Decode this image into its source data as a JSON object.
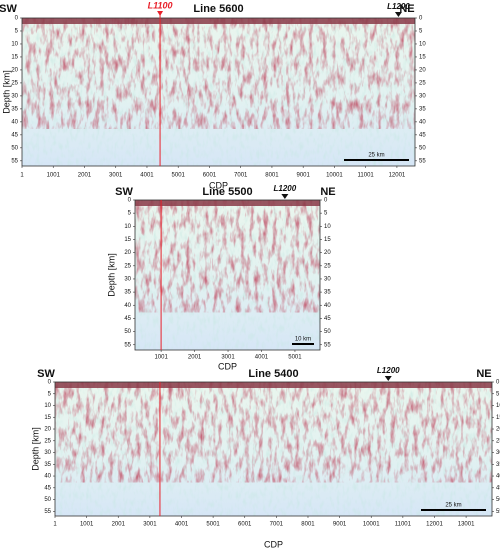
{
  "chart_data": [
    {
      "type": "seismic-section",
      "title": "Line 5600",
      "left_label": "SW",
      "right_label": "NE",
      "xlabel": "CDP",
      "ylabel": "Depth [km]",
      "xlim": [
        1,
        12580
      ],
      "xticks": [
        1,
        1001,
        2001,
        3001,
        4001,
        5001,
        6001,
        7001,
        8001,
        9001,
        10001,
        11001,
        12001
      ],
      "ylim": [
        0,
        57
      ],
      "yticks": [
        0,
        5,
        10,
        15,
        20,
        25,
        30,
        35,
        40,
        45,
        50,
        55
      ],
      "crossing_line": {
        "x": 4420,
        "color": "#e8202a",
        "label": "L1100"
      },
      "marker": {
        "label": "L1200",
        "x": 12050
      },
      "scale_bar": "25 km"
    },
    {
      "type": "seismic-section",
      "title": "Line 5500",
      "left_label": "SW",
      "right_label": "NE",
      "xlabel": "CDP",
      "ylabel": "Depth [km]",
      "xlim": [
        220,
        5750
      ],
      "xticks": [
        1001,
        2001,
        3001,
        4001,
        5001
      ],
      "ylim": [
        0,
        57
      ],
      "yticks": [
        0,
        5,
        10,
        15,
        20,
        25,
        30,
        35,
        40,
        45,
        50,
        55
      ],
      "crossing_line": {
        "x": 1000,
        "color": "#e8202a"
      },
      "marker": {
        "label": "L1200",
        "x": 4700
      },
      "scale_bar": "10 km"
    },
    {
      "type": "seismic-section",
      "title": "Line 5400",
      "left_label": "SW",
      "right_label": "NE",
      "xlabel": "CDP",
      "ylabel": "Depth [km]",
      "xlim": [
        1,
        13820
      ],
      "xticks": [
        1,
        1001,
        2001,
        3001,
        4001,
        5001,
        6001,
        7001,
        8001,
        9001,
        10001,
        11001,
        12001,
        13001
      ],
      "ylim": [
        0,
        57
      ],
      "yticks": [
        0,
        5,
        10,
        15,
        20,
        25,
        30,
        35,
        40,
        45,
        50,
        55
      ],
      "crossing_line": {
        "x": 3320,
        "color": "#e8202a"
      },
      "marker": {
        "label": "L1200",
        "x": 10540
      },
      "scale_bar": "25 km"
    }
  ]
}
